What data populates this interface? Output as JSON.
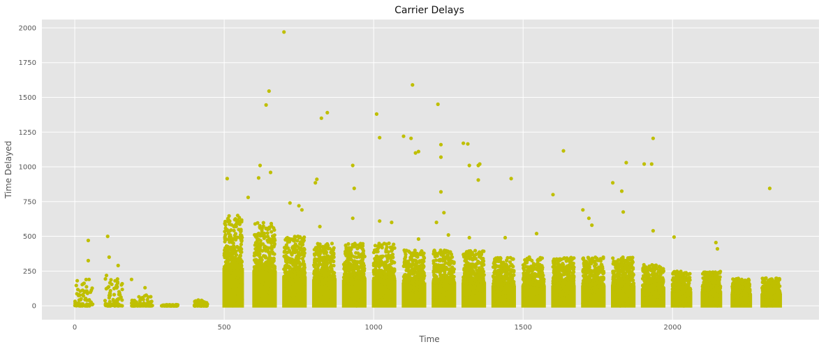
{
  "chart_data": {
    "type": "scatter",
    "title": "Carrier Delays",
    "xlabel": "Time",
    "ylabel": "Time Delayed",
    "xlim": [
      -110,
      2490
    ],
    "ylim": [
      -100,
      2060
    ],
    "xticks": [
      0,
      500,
      1000,
      1500,
      2000
    ],
    "yticks": [
      0,
      250,
      500,
      750,
      1000,
      1250,
      1500,
      1750,
      2000
    ],
    "grid": true,
    "legend": "none",
    "colors": {
      "background": "#e5e5e5",
      "grid": "#ffffff",
      "marker": "#bfbf00"
    },
    "clusters": [
      {
        "x": [
          0,
          60
        ],
        "max": 480,
        "density": "sparse"
      },
      {
        "x": [
          100,
          160
        ],
        "max": 500,
        "density": "sparse"
      },
      {
        "x": [
          190,
          260
        ],
        "max": 190,
        "density": "sparse"
      },
      {
        "x": [
          290,
          345
        ],
        "max": 20,
        "density": "sparse"
      },
      {
        "x": [
          400,
          445
        ],
        "max": 110,
        "density": "sparse"
      },
      {
        "x": [
          500,
          560
        ],
        "max": 650,
        "density": "dense"
      },
      {
        "x": [
          600,
          670
        ],
        "max": 600,
        "density": "dense"
      },
      {
        "x": [
          700,
          770
        ],
        "max": 500,
        "density": "dense"
      },
      {
        "x": [
          800,
          870
        ],
        "max": 450,
        "density": "dense"
      },
      {
        "x": [
          900,
          970
        ],
        "max": 450,
        "density": "dense"
      },
      {
        "x": [
          1000,
          1070
        ],
        "max": 450,
        "density": "dense"
      },
      {
        "x": [
          1100,
          1170
        ],
        "max": 400,
        "density": "dense"
      },
      {
        "x": [
          1200,
          1270
        ],
        "max": 400,
        "density": "dense"
      },
      {
        "x": [
          1300,
          1370
        ],
        "max": 400,
        "density": "dense"
      },
      {
        "x": [
          1400,
          1470
        ],
        "max": 350,
        "density": "dense"
      },
      {
        "x": [
          1500,
          1570
        ],
        "max": 350,
        "density": "dense"
      },
      {
        "x": [
          1600,
          1670
        ],
        "max": 350,
        "density": "dense"
      },
      {
        "x": [
          1700,
          1770
        ],
        "max": 350,
        "density": "dense"
      },
      {
        "x": [
          1800,
          1870
        ],
        "max": 350,
        "density": "dense"
      },
      {
        "x": [
          1900,
          1970
        ],
        "max": 300,
        "density": "dense"
      },
      {
        "x": [
          2000,
          2060
        ],
        "max": 250,
        "density": "dense"
      },
      {
        "x": [
          2100,
          2160
        ],
        "max": 250,
        "density": "dense"
      },
      {
        "x": [
          2200,
          2260
        ],
        "max": 200,
        "density": "dense"
      },
      {
        "x": [
          2300,
          2360
        ],
        "max": 200,
        "density": "dense"
      }
    ],
    "outliers": [
      [
        700,
        1970
      ],
      [
        650,
        1545
      ],
      [
        640,
        1445
      ],
      [
        620,
        1010
      ],
      [
        655,
        960
      ],
      [
        580,
        780
      ],
      [
        615,
        920
      ],
      [
        510,
        915
      ],
      [
        810,
        910
      ],
      [
        805,
        885
      ],
      [
        825,
        1350
      ],
      [
        845,
        1390
      ],
      [
        930,
        1010
      ],
      [
        935,
        845
      ],
      [
        1010,
        1380
      ],
      [
        1020,
        1210
      ],
      [
        1020,
        610
      ],
      [
        1100,
        1220
      ],
      [
        1125,
        1205
      ],
      [
        1130,
        1590
      ],
      [
        1140,
        1100
      ],
      [
        1150,
        1110
      ],
      [
        1215,
        1450
      ],
      [
        1225,
        1160
      ],
      [
        1225,
        1070
      ],
      [
        1225,
        820
      ],
      [
        1235,
        670
      ],
      [
        1210,
        600
      ],
      [
        1300,
        1170
      ],
      [
        1315,
        1165
      ],
      [
        1320,
        1010
      ],
      [
        1350,
        1010
      ],
      [
        1355,
        1020
      ],
      [
        1350,
        905
      ],
      [
        1460,
        915
      ],
      [
        1600,
        800
      ],
      [
        1635,
        1115
      ],
      [
        1700,
        690
      ],
      [
        1800,
        885
      ],
      [
        1830,
        825
      ],
      [
        1835,
        675
      ],
      [
        1845,
        1030
      ],
      [
        1905,
        1020
      ],
      [
        1935,
        1205
      ],
      [
        1930,
        1020
      ],
      [
        1935,
        540
      ],
      [
        2005,
        495
      ],
      [
        2145,
        455
      ],
      [
        2150,
        410
      ],
      [
        2325,
        845
      ],
      [
        45,
        470
      ],
      [
        45,
        325
      ],
      [
        110,
        500
      ],
      [
        115,
        350
      ],
      [
        145,
        290
      ],
      [
        190,
        190
      ],
      [
        235,
        130
      ],
      [
        520,
        510
      ],
      [
        545,
        650
      ],
      [
        720,
        740
      ],
      [
        750,
        720
      ],
      [
        760,
        690
      ],
      [
        820,
        570
      ],
      [
        930,
        630
      ],
      [
        1060,
        600
      ],
      [
        1150,
        480
      ],
      [
        1250,
        510
      ],
      [
        1320,
        490
      ],
      [
        1440,
        490
      ],
      [
        1545,
        520
      ],
      [
        1720,
        630
      ],
      [
        1730,
        580
      ]
    ]
  }
}
